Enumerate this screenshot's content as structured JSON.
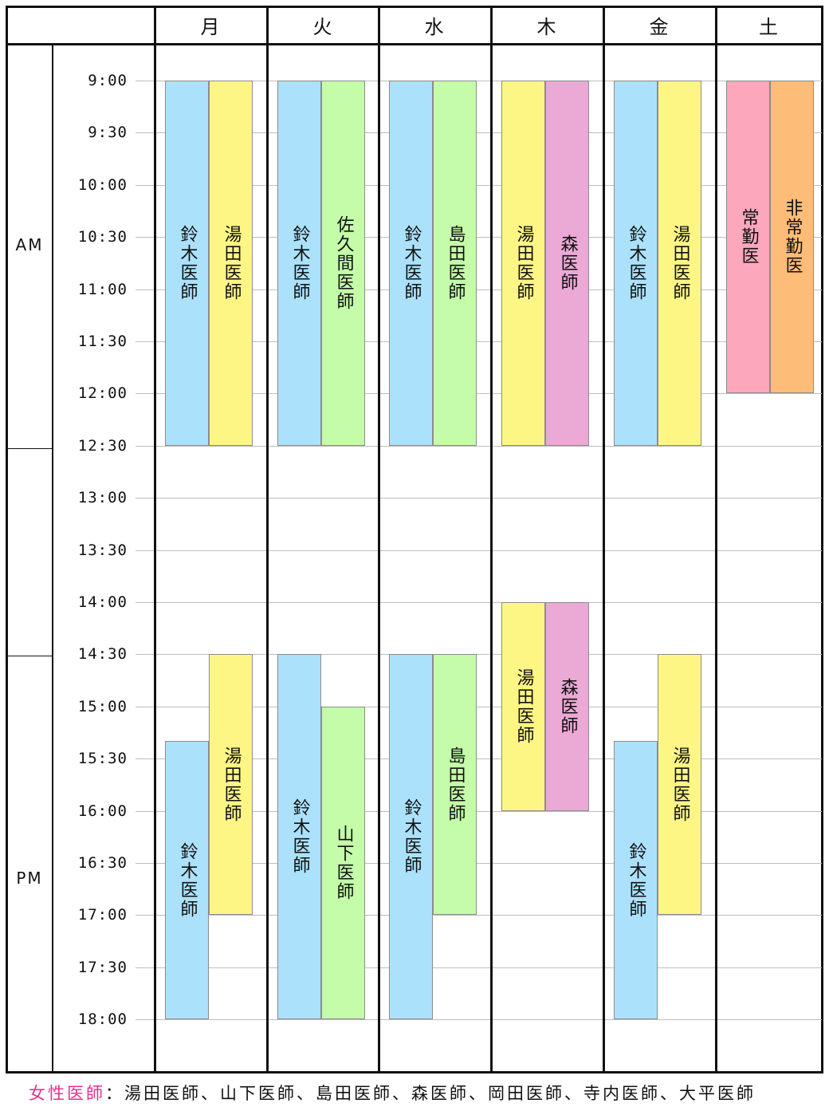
{
  "days": [
    "月",
    "火",
    "水",
    "木",
    "金",
    "土"
  ],
  "times": [
    "9:00",
    "9:30",
    "10:00",
    "10:30",
    "11:00",
    "11:30",
    "12:00",
    "12:30",
    "13:00",
    "13:30",
    "14:00",
    "14:30",
    "15:00",
    "15:30",
    "16:00",
    "16:30",
    "17:00",
    "17:30",
    "18:00"
  ],
  "am_label": "AM",
  "pm_label": "PM",
  "colors": {
    "blue": "#abe1fb",
    "yellow": "#fdf685",
    "green": "#c4fca9",
    "pink": "#eba9d5",
    "rose": "#fda7bc",
    "orange": "#fdbc78"
  },
  "schedule": [
    {
      "day": 0,
      "sub": 0,
      "start": "9:00",
      "end": "12:30",
      "label": "鈴木医師",
      "color": "blue"
    },
    {
      "day": 0,
      "sub": 1,
      "start": "9:00",
      "end": "12:30",
      "label": "湯田医師",
      "color": "yellow"
    },
    {
      "day": 0,
      "sub": 0,
      "start": "15:20",
      "end": "18:00",
      "label": "鈴木医師",
      "color": "blue"
    },
    {
      "day": 0,
      "sub": 1,
      "start": "14:30",
      "end": "17:00",
      "label": "湯田医師",
      "color": "yellow"
    },
    {
      "day": 1,
      "sub": 0,
      "start": "9:00",
      "end": "12:30",
      "label": "鈴木医師",
      "color": "blue"
    },
    {
      "day": 1,
      "sub": 1,
      "start": "9:00",
      "end": "12:30",
      "label": "佐久間医師",
      "color": "green"
    },
    {
      "day": 1,
      "sub": 0,
      "start": "14:30",
      "end": "18:00",
      "label": "鈴木医師",
      "color": "blue"
    },
    {
      "day": 1,
      "sub": 1,
      "start": "15:00",
      "end": "18:00",
      "label": "山下医師",
      "color": "green"
    },
    {
      "day": 2,
      "sub": 0,
      "start": "9:00",
      "end": "12:30",
      "label": "鈴木医師",
      "color": "blue"
    },
    {
      "day": 2,
      "sub": 1,
      "start": "9:00",
      "end": "12:30",
      "label": "島田医師",
      "color": "green"
    },
    {
      "day": 2,
      "sub": 0,
      "start": "14:30",
      "end": "18:00",
      "label": "鈴木医師",
      "color": "blue"
    },
    {
      "day": 2,
      "sub": 1,
      "start": "14:30",
      "end": "17:00",
      "label": "島田医師",
      "color": "green"
    },
    {
      "day": 3,
      "sub": 0,
      "start": "9:00",
      "end": "12:30",
      "label": "湯田医師",
      "color": "yellow"
    },
    {
      "day": 3,
      "sub": 1,
      "start": "9:00",
      "end": "12:30",
      "label": "森医師",
      "color": "pink"
    },
    {
      "day": 3,
      "sub": 0,
      "start": "14:00",
      "end": "16:00",
      "label": "湯田医師",
      "color": "yellow"
    },
    {
      "day": 3,
      "sub": 1,
      "start": "14:00",
      "end": "16:00",
      "label": "森医師",
      "color": "pink"
    },
    {
      "day": 4,
      "sub": 0,
      "start": "9:00",
      "end": "12:30",
      "label": "鈴木医師",
      "color": "blue"
    },
    {
      "day": 4,
      "sub": 1,
      "start": "9:00",
      "end": "12:30",
      "label": "湯田医師",
      "color": "yellow"
    },
    {
      "day": 4,
      "sub": 0,
      "start": "15:20",
      "end": "18:00",
      "label": "鈴木医師",
      "color": "blue"
    },
    {
      "day": 4,
      "sub": 1,
      "start": "14:30",
      "end": "17:00",
      "label": "湯田医師",
      "color": "yellow"
    },
    {
      "day": 5,
      "sub": 0,
      "start": "9:00",
      "end": "12:00",
      "label": "常勤医",
      "color": "rose"
    },
    {
      "day": 5,
      "sub": 1,
      "start": "9:00",
      "end": "12:00",
      "label": "非常勤医",
      "color": "orange"
    }
  ],
  "footer": {
    "highlight": "女性医師",
    "highlight_color": "#e8318c",
    "text": "：湯田医師、山下医師、島田医師、森医師、岡田医師、寺内医師、大平医師"
  }
}
